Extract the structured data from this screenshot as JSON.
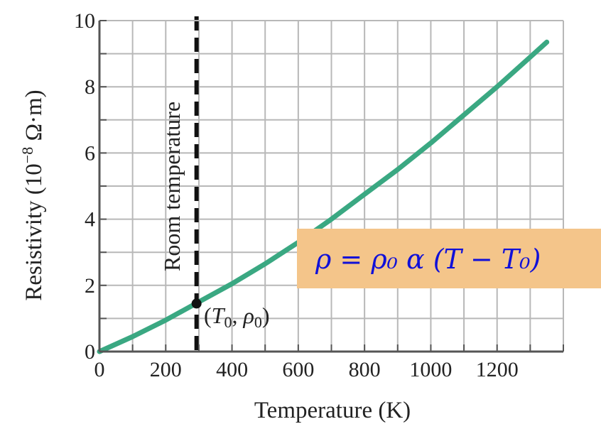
{
  "chart_data": {
    "type": "line",
    "xlabel": "Temperature (K)",
    "ylabel": "Resistivity (10",
    "ylabel_exp": "−8",
    "ylabel_unit": " Ω·m)",
    "x_ticks": [
      "0",
      "200",
      "400",
      "600",
      "800",
      "1000",
      "1200"
    ],
    "y_ticks": [
      "0",
      "2",
      "4",
      "6",
      "8",
      "10"
    ],
    "xlim": [
      0,
      1400
    ],
    "ylim": [
      0,
      10
    ],
    "grid": true,
    "series": [
      {
        "color": "#3aa882",
        "x": [
          0,
          100,
          200,
          300,
          400,
          500,
          600,
          700,
          800,
          900,
          1000,
          1100,
          1200,
          1300,
          1350
        ],
        "y": [
          0.0,
          0.45,
          0.95,
          1.5,
          2.05,
          2.65,
          3.3,
          4.0,
          4.75,
          5.5,
          6.3,
          7.15,
          8.0,
          8.9,
          9.35
        ]
      }
    ],
    "reference_line": {
      "x": 293,
      "label": "Room temperature",
      "style": "dashed",
      "color": "#111111"
    },
    "point": {
      "x": 293,
      "y": 1.45,
      "label_open": "(",
      "label_T": "T",
      "label_T_sub": "0",
      "label_sep": ", ",
      "label_rho": "ρ",
      "label_rho_sub": "0",
      "label_close": ")"
    },
    "equation": {
      "text": "ρ = ρ₀ α (T − T₀)",
      "background": "#f4c58a",
      "color": "#1010d8"
    }
  }
}
